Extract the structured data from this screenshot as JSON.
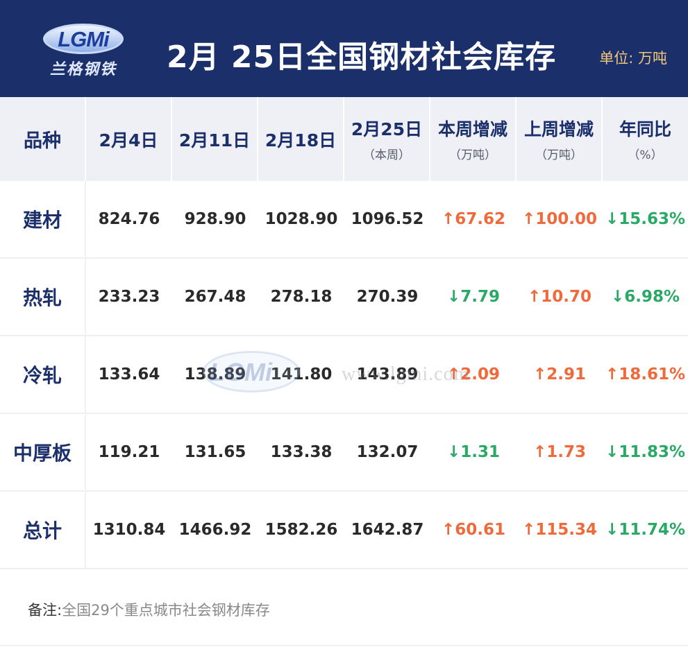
{
  "header": {
    "logo_text": "LGMi",
    "logo_cn": "兰格钢铁",
    "title": "2月 25日全国钢材社会库存",
    "unit": "单位: 万吨"
  },
  "columns": [
    {
      "label": "品种",
      "sub": ""
    },
    {
      "label": "2月4日",
      "sub": ""
    },
    {
      "label": "2月11日",
      "sub": ""
    },
    {
      "label": "2月18日",
      "sub": ""
    },
    {
      "label": "2月25日",
      "sub": "（本周）"
    },
    {
      "label": "本周增减",
      "sub": "（万吨）"
    },
    {
      "label": "上周增减",
      "sub": "（万吨）"
    },
    {
      "label": "年同比",
      "sub": "（%）"
    }
  ],
  "rows": [
    {
      "category": "建材",
      "v1": "824.76",
      "v2": "928.90",
      "v3": "1028.90",
      "v4": "1096.52",
      "week": {
        "text": "↑67.62",
        "dir": "up"
      },
      "lastweek": {
        "text": "↑100.00",
        "dir": "up"
      },
      "yoy": {
        "text": "↓15.63%",
        "dir": "down"
      }
    },
    {
      "category": "热轧",
      "v1": "233.23",
      "v2": "267.48",
      "v3": "278.18",
      "v4": "270.39",
      "week": {
        "text": "↓7.79",
        "dir": "down"
      },
      "lastweek": {
        "text": "↑10.70",
        "dir": "up"
      },
      "yoy": {
        "text": "↓6.98%",
        "dir": "down"
      }
    },
    {
      "category": "冷轧",
      "v1": "133.64",
      "v2": "138.89",
      "v3": "141.80",
      "v4": "143.89",
      "week": {
        "text": "↑2.09",
        "dir": "up"
      },
      "lastweek": {
        "text": "↑2.91",
        "dir": "up"
      },
      "yoy": {
        "text": "↑18.61%",
        "dir": "up"
      }
    },
    {
      "category": "中厚板",
      "v1": "119.21",
      "v2": "131.65",
      "v3": "133.38",
      "v4": "132.07",
      "week": {
        "text": "↓1.31",
        "dir": "down"
      },
      "lastweek": {
        "text": "↑1.73",
        "dir": "up"
      },
      "yoy": {
        "text": "↓11.83%",
        "dir": "down"
      }
    },
    {
      "category": "总计",
      "v1": "1310.84",
      "v2": "1466.92",
      "v3": "1582.26",
      "v4": "1642.87",
      "week": {
        "text": "↑60.61",
        "dir": "up"
      },
      "lastweek": {
        "text": "↑115.34",
        "dir": "up"
      },
      "yoy": {
        "text": "↓11.74%",
        "dir": "down"
      }
    }
  ],
  "watermark": {
    "logo": "LGMi",
    "url": "www.lgmi.com"
  },
  "note": {
    "label": "备注:",
    "text": "全国29个重点城市社会钢材库存"
  },
  "colors": {
    "header_bg": "#1b2f6b",
    "unit_text": "#f3c87a",
    "up": "#ef6a3a",
    "down": "#2aa865"
  }
}
